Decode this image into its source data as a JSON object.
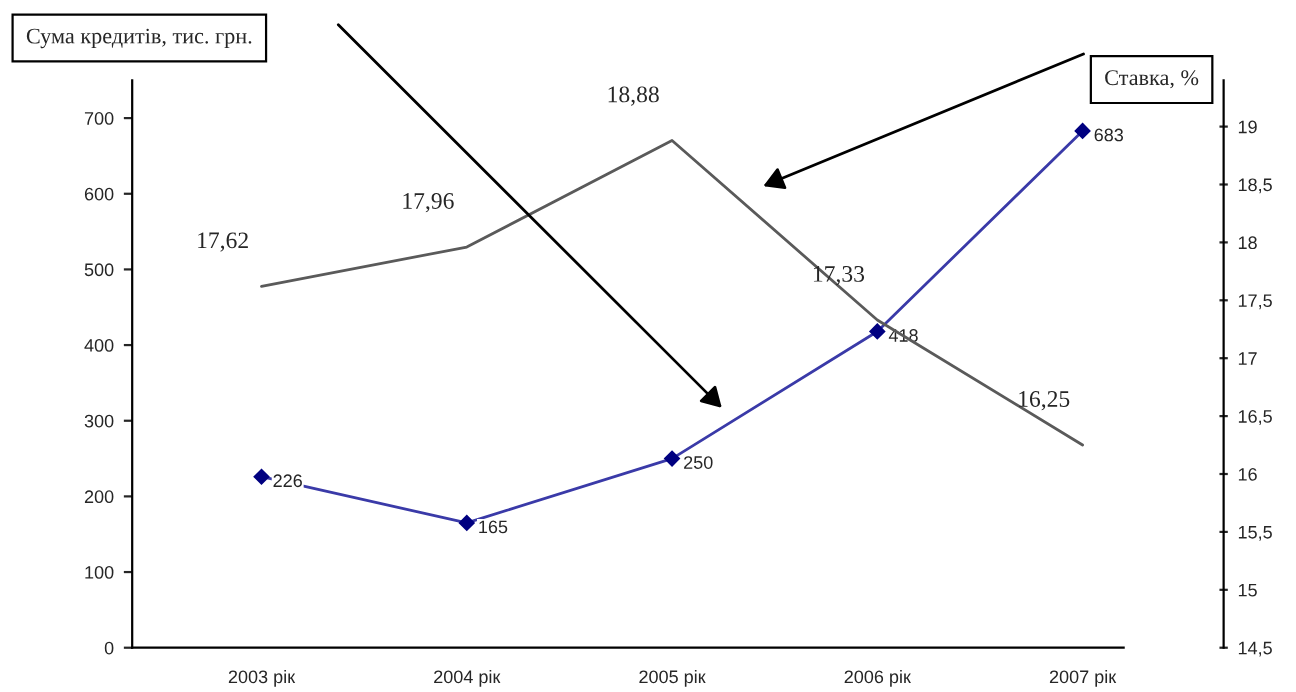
{
  "chart_data": {
    "type": "line",
    "categories": [
      "2003 рік",
      "2004 рік",
      "2005 рік",
      "2006 рік",
      "2007 рік"
    ],
    "ylabel": "Сума кредитів, тис. грн.",
    "y2label": "Ставка, %",
    "series": [
      {
        "color": "#3a3aa8",
        "marker": "diamond",
        "values": [
          226,
          165,
          250,
          418,
          683
        ]
      },
      {
        "color": "#5a5a5a",
        "axis": "y2",
        "values": [
          17.62,
          17.96,
          18.88,
          17.33,
          16.25
        ],
        "value_labels": [
          "17,62",
          "17,96",
          "18,88",
          "17,33",
          "16,25"
        ]
      }
    ],
    "ylim": [
      0,
      750
    ],
    "yticks": [
      0,
      100,
      200,
      300,
      400,
      500,
      600,
      700
    ],
    "y2lim": [
      14.5,
      19.4
    ],
    "y2ticks": [
      {
        "value": 14.5,
        "label": "14,5"
      },
      {
        "value": 15,
        "label": "15"
      },
      {
        "value": 15.5,
        "label": "15,5"
      },
      {
        "value": 16,
        "label": "16"
      },
      {
        "value": 16.5,
        "label": "16,5"
      },
      {
        "value": 17,
        "label": "17"
      },
      {
        "value": 17.5,
        "label": "17,5"
      },
      {
        "value": 18,
        "label": "18"
      },
      {
        "value": 18.5,
        "label": "18,5"
      },
      {
        "value": 19,
        "label": "19"
      }
    ],
    "data_labels": true,
    "grid": false,
    "legend": false
  }
}
